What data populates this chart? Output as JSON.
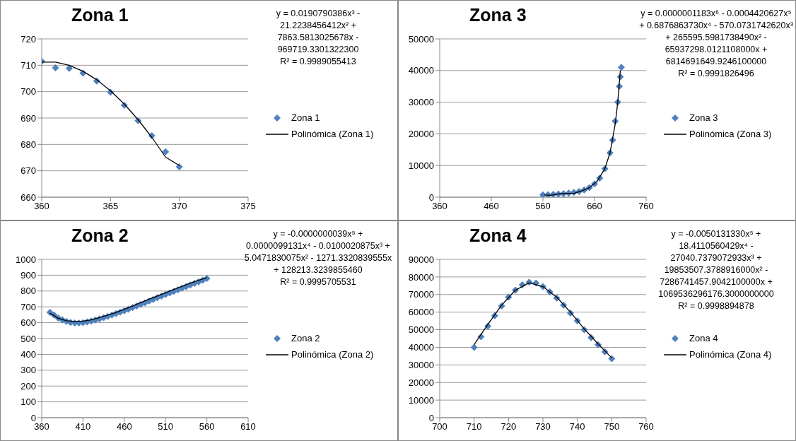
{
  "chart_data": [
    {
      "type": "scatter",
      "title": "Zona 1",
      "xlim": [
        360,
        375
      ],
      "xticks": [
        360,
        365,
        370,
        375
      ],
      "ylim": [
        660,
        720
      ],
      "yticks": [
        660,
        670,
        680,
        690,
        700,
        710,
        720
      ],
      "grid": "y",
      "legend": "right",
      "annotations": [
        "y = 0.0190790386x³ - 21.2238456412x² + 7863.5813025678x - 969719.3301322300",
        "R² = 0.9989055413"
      ],
      "series": [
        {
          "name": "Zona 1",
          "marker": "diamond",
          "color": "#4f81bd",
          "x": [
            360,
            361,
            362,
            363,
            364,
            365,
            366,
            367,
            368,
            369,
            370
          ],
          "values": [
            711.5,
            709,
            708.8,
            707,
            704,
            699.8,
            694.8,
            689,
            683.3,
            677.2,
            671.5
          ]
        },
        {
          "name": "Polinómica (Zona 1)",
          "type": "line",
          "marker": "none",
          "color": "#000000",
          "x": [
            360,
            361,
            362,
            363,
            364,
            365,
            366,
            367,
            368,
            369,
            370
          ],
          "values": [
            711.2,
            711.2,
            710,
            707.7,
            704.5,
            700.3,
            695.3,
            689.4,
            682.7,
            675.2,
            672
          ]
        }
      ]
    },
    {
      "type": "scatter",
      "title": "Zona 3",
      "xlim": [
        360,
        760
      ],
      "xticks": [
        360,
        460,
        560,
        660,
        760
      ],
      "ylim": [
        0,
        50000
      ],
      "yticks": [
        0,
        10000,
        20000,
        30000,
        40000,
        50000
      ],
      "grid": "y",
      "legend": "right",
      "annotations": [
        "y = 0.0000001183x⁶ - 0.0004420627x⁵ + 0.6876863730x⁴ - 570.0731742620x³ + 265595.5981738490x² - 65937298.0121108000x + 6814691649.9246100000",
        "R² = 0.9991826496"
      ],
      "series": [
        {
          "name": "Zona 3",
          "marker": "diamond",
          "color": "#4f81bd",
          "x": [
            560,
            570,
            580,
            590,
            600,
            610,
            620,
            630,
            640,
            650,
            660,
            670,
            680,
            690,
            695,
            700,
            705,
            708,
            710,
            712
          ],
          "values": [
            700,
            800,
            900,
            1000,
            1100,
            1300,
            1500,
            1800,
            2300,
            3000,
            4200,
            6000,
            9000,
            14000,
            18000,
            24000,
            30000,
            35000,
            38000,
            41000
          ]
        },
        {
          "name": "Polinómica (Zona 3)",
          "type": "line",
          "marker": "none",
          "color": "#000000",
          "x": [
            563,
            575,
            590,
            605,
            620,
            635,
            650,
            665,
            680,
            690,
            700,
            705,
            710
          ],
          "values": [
            700,
            600,
            1000,
            1200,
            1200,
            2000,
            3000,
            5000,
            9000,
            14000,
            23000,
            30000,
            40000
          ]
        }
      ]
    },
    {
      "type": "scatter",
      "title": "Zona 2",
      "xlim": [
        360,
        610
      ],
      "xticks": [
        360,
        410,
        460,
        510,
        560,
        610
      ],
      "ylim": [
        0,
        1000
      ],
      "yticks": [
        0,
        100,
        200,
        300,
        400,
        500,
        600,
        700,
        800,
        900,
        1000
      ],
      "grid": "y",
      "legend": "right",
      "annotations": [
        "y = -0.0000000039x⁵ + 0.0000099131x⁴ - 0.0100020875x³ + 5.0471830075x² - 1271.3320839555x + 128213.3239855460",
        "R² = 0.9995705531"
      ],
      "series": [
        {
          "name": "Zona 2",
          "marker": "diamond",
          "color": "#4f81bd",
          "x": [
            370,
            375,
            380,
            385,
            390,
            395,
            400,
            405,
            410,
            415,
            420,
            425,
            430,
            435,
            440,
            445,
            450,
            455,
            460,
            465,
            470,
            475,
            480,
            485,
            490,
            495,
            500,
            505,
            510,
            515,
            520,
            525,
            530,
            535,
            540,
            545,
            550,
            555,
            560
          ],
          "values": [
            665,
            648,
            630,
            618,
            608,
            602,
            598,
            598,
            600,
            605,
            610,
            617,
            624,
            632,
            640,
            648,
            657,
            666,
            675,
            685,
            695,
            705,
            715,
            726,
            737,
            747,
            758,
            768,
            778,
            788,
            798,
            808,
            818,
            828,
            838,
            848,
            858,
            868,
            880
          ]
        },
        {
          "name": "Polinómica (Zona 2)",
          "type": "line",
          "marker": "none",
          "color": "#000000",
          "x": [
            370,
            380,
            390,
            400,
            410,
            420,
            430,
            440,
            450,
            460,
            470,
            480,
            490,
            500,
            510,
            520,
            530,
            540,
            550,
            560
          ],
          "values": [
            660,
            628,
            612,
            608,
            610,
            618,
            632,
            648,
            665,
            685,
            705,
            727,
            748,
            768,
            790,
            810,
            830,
            850,
            868,
            885
          ]
        }
      ]
    },
    {
      "type": "scatter",
      "title": "Zona 4",
      "xlim": [
        700,
        760
      ],
      "xticks": [
        700,
        710,
        720,
        730,
        740,
        750,
        760
      ],
      "ylim": [
        0,
        90000
      ],
      "yticks": [
        0,
        10000,
        20000,
        30000,
        40000,
        50000,
        60000,
        70000,
        80000,
        90000
      ],
      "grid": "y",
      "legend": "right",
      "annotations": [
        "y = -0.0050131330x⁵ + 18.4110560429x⁴ - 27040.7379072933x³ + 19853507.3788916000x² - 7286741457.9042100000x + 1069536296176.3000000000",
        "R² = 0.9998894878"
      ],
      "series": [
        {
          "name": "Zona 4",
          "marker": "diamond",
          "color": "#4f81bd",
          "x": [
            710,
            712,
            714,
            716,
            718,
            720,
            722,
            724,
            726,
            728,
            730,
            732,
            734,
            736,
            738,
            740,
            742,
            744,
            746,
            748,
            750
          ],
          "values": [
            40000,
            46000,
            52000,
            58000,
            63500,
            68500,
            72500,
            75500,
            77000,
            76500,
            74500,
            71500,
            68000,
            64000,
            59500,
            55000,
            50000,
            45500,
            41500,
            37500,
            33500
          ]
        },
        {
          "name": "Polinómica (Zona 4)",
          "type": "line",
          "marker": "none",
          "color": "#000000",
          "x": [
            710,
            714,
            718,
            722,
            726,
            730,
            734,
            738,
            742,
            746,
            750
          ],
          "values": [
            41500,
            53000,
            64000,
            72500,
            76700,
            74500,
            68500,
            60000,
            50500,
            42000,
            34000
          ]
        }
      ]
    }
  ]
}
